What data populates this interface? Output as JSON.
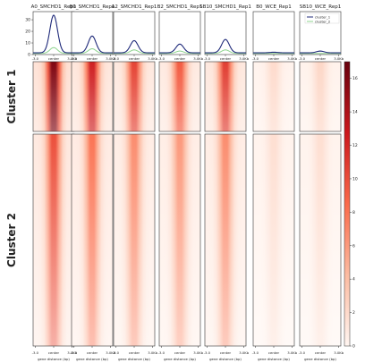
{
  "chart_data": {
    "type": "heatmap",
    "columns": [
      {
        "title": "A0_SMCHD1_Rep1",
        "profile": {
          "cluster_1_peak": 34,
          "cluster_2_peak": 6
        },
        "intensity": {
          "cluster_1": 1.0,
          "cluster_2": 0.62
        }
      },
      {
        "title": "B0_SMCHD1_Rep1",
        "profile": {
          "cluster_1_peak": 16,
          "cluster_2_peak": 5
        },
        "intensity": {
          "cluster_1": 0.78,
          "cluster_2": 0.5
        }
      },
      {
        "title": "A2_SMCHD1_Rep1",
        "profile": {
          "cluster_1_peak": 12,
          "cluster_2_peak": 4
        },
        "intensity": {
          "cluster_1": 0.66,
          "cluster_2": 0.42
        }
      },
      {
        "title": "B2_SMCHD1_Rep1",
        "profile": {
          "cluster_1_peak": 9,
          "cluster_2_peak": 3
        },
        "intensity": {
          "cluster_1": 0.58,
          "cluster_2": 0.38
        }
      },
      {
        "title": "SB10_SMCHD1_Rep1",
        "profile": {
          "cluster_1_peak": 13,
          "cluster_2_peak": 4
        },
        "intensity": {
          "cluster_1": 0.68,
          "cluster_2": 0.42
        }
      },
      {
        "title": "B0_WCE_Rep1",
        "profile": {
          "cluster_1_peak": 2,
          "cluster_2_peak": 1
        },
        "intensity": {
          "cluster_1": 0.12,
          "cluster_2": 0.1
        }
      },
      {
        "title": "SB10_WCE_Rep1",
        "profile": {
          "cluster_1_peak": 3,
          "cluster_2_peak": 1
        },
        "intensity": {
          "cluster_1": 0.14,
          "cluster_2": 0.1
        }
      }
    ],
    "profile_yticks": [
      0,
      10,
      20,
      30
    ],
    "profile_ylim": [
      0,
      37
    ],
    "x_ticks": [
      "-3.0",
      "center",
      "3.0Kb"
    ],
    "heatmap_x_ticks": [
      "-3.0",
      "center",
      "3.0Kb"
    ],
    "xlabel": "gene distance (bp)",
    "row_labels": [
      "Cluster 1",
      "Cluster 2"
    ],
    "legend": {
      "entries": [
        "cluster_1",
        "cluster_2"
      ],
      "colors": [
        "#1f2a7a",
        "#8fd48f"
      ],
      "placement": "top-right of last column"
    },
    "colorbar": {
      "ticks": [
        0,
        2,
        4,
        6,
        8,
        10,
        12,
        14,
        16
      ],
      "range": [
        0,
        17
      ]
    },
    "colors": {
      "high": "#67000d",
      "mid": "#e8453c",
      "low": "#fff5f0",
      "cluster_1_line": "#1f2a7a",
      "cluster_2_line": "#8fd48f"
    }
  }
}
